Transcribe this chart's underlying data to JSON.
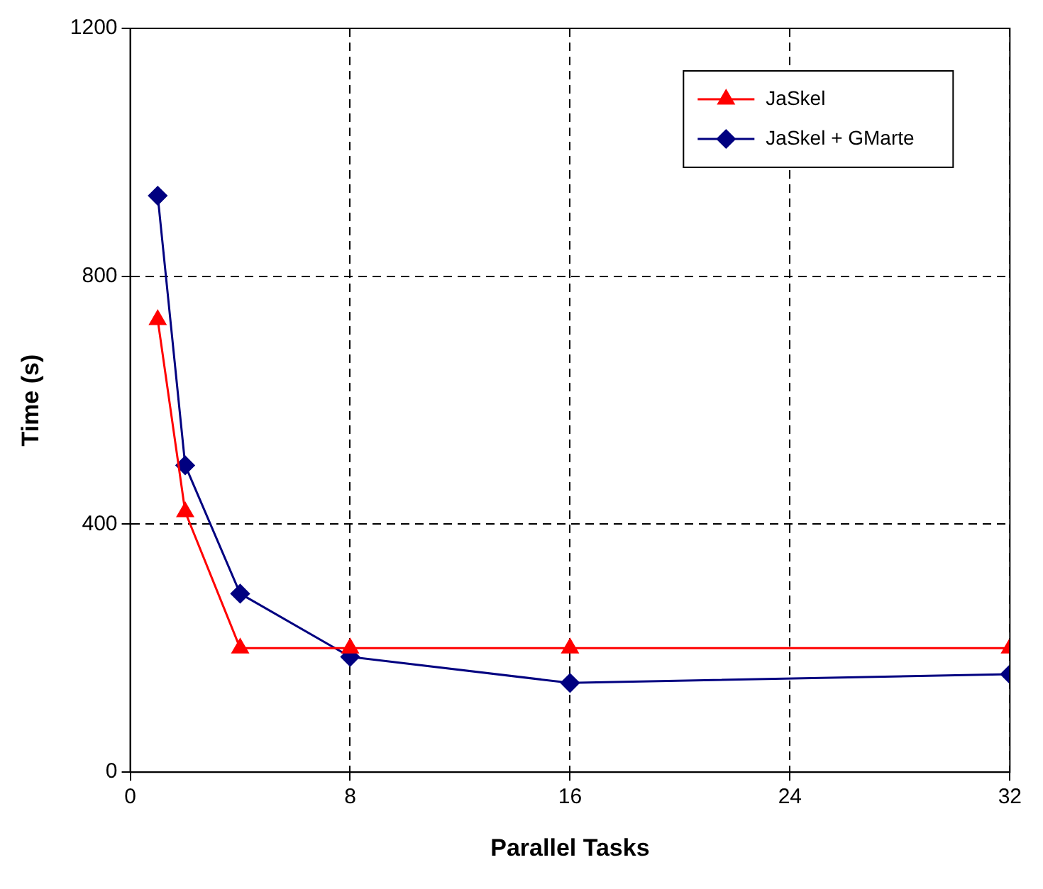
{
  "chart_data": {
    "type": "line",
    "xlabel": "Parallel Tasks",
    "ylabel": "Time (s)",
    "x": [
      1,
      2,
      4,
      8,
      16,
      32
    ],
    "series": [
      {
        "name": "JaSkel",
        "color": "#ff0000",
        "marker": "triangle",
        "values": [
          730,
          420,
          200,
          200,
          200,
          200
        ]
      },
      {
        "name": "JaSkel + GMarte",
        "color": "#000080",
        "marker": "diamond",
        "values": [
          930,
          495,
          288,
          186,
          144,
          158
        ]
      }
    ],
    "xlim": [
      0,
      32
    ],
    "xticks": [
      0,
      8,
      16,
      24,
      32
    ],
    "ylim": [
      0,
      1200
    ],
    "yticks": [
      0,
      400,
      800,
      1200
    ],
    "grid": true,
    "legend": "top right",
    "line_style": "solid"
  }
}
